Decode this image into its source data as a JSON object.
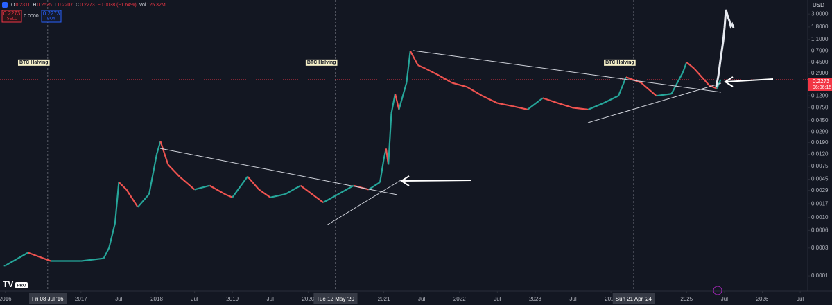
{
  "header": {
    "ohlc": [
      {
        "k": "O",
        "v": "0.2311"
      },
      {
        "k": "H",
        "v": "0.2525"
      },
      {
        "k": "L",
        "v": "0.2207"
      },
      {
        "k": "C",
        "v": "0.2273"
      },
      {
        "k": "",
        "v": "−0.0038 (−1.64%)"
      },
      {
        "k": "Vol",
        "v": "125.32M"
      }
    ],
    "sell": {
      "price": "0.2273",
      "label": "SELL"
    },
    "spread": "0.0000",
    "buy": {
      "price": "0.2273",
      "label": "BUY"
    },
    "currency": "USD",
    "last_price": "0.2273",
    "countdown": "06:06:15",
    "logo": "PRO"
  },
  "chart_data": {
    "type": "line",
    "log_scale": true,
    "grid": false,
    "up_color": "#26a69a",
    "down_color": "#ef5350",
    "xlim": [
      2015.93,
      2026.6
    ],
    "ylim": [
      5.5e-05,
      5.2
    ],
    "xticks": [
      {
        "value": 2016,
        "label": "2016"
      },
      {
        "value": 2017,
        "label": "2017"
      },
      {
        "value": 2017.5,
        "label": "Jul"
      },
      {
        "value": 2018,
        "label": "2018"
      },
      {
        "value": 2018.5,
        "label": "Jul"
      },
      {
        "value": 2019,
        "label": "2019"
      },
      {
        "value": 2019.5,
        "label": "Jul"
      },
      {
        "value": 2020,
        "label": "2020"
      },
      {
        "value": 2021,
        "label": "2021"
      },
      {
        "value": 2021.5,
        "label": "Jul"
      },
      {
        "value": 2022,
        "label": "2022"
      },
      {
        "value": 2022.5,
        "label": "Jul"
      },
      {
        "value": 2023,
        "label": "2023"
      },
      {
        "value": 2023.5,
        "label": "Jul"
      },
      {
        "value": 2024,
        "label": "2024"
      },
      {
        "value": 2025,
        "label": "2025"
      },
      {
        "value": 2025.5,
        "label": "Jul"
      },
      {
        "value": 2026,
        "label": "2026"
      },
      {
        "value": 2026.5,
        "label": "Jul"
      }
    ],
    "yticks": [
      {
        "value": 3,
        "label": "3.0000"
      },
      {
        "value": 1.8,
        "label": "1.8000"
      },
      {
        "value": 1.1,
        "label": "1.1000"
      },
      {
        "value": 0.7,
        "label": "0.7000"
      },
      {
        "value": 0.45,
        "label": "0.4500"
      },
      {
        "value": 0.29,
        "label": "0.2900"
      },
      {
        "value": 0.12,
        "label": "0.1200"
      },
      {
        "value": 0.075,
        "label": "0.0750"
      },
      {
        "value": 0.045,
        "label": "0.0450"
      },
      {
        "value": 0.029,
        "label": "0.0290"
      },
      {
        "value": 0.019,
        "label": "0.0190"
      },
      {
        "value": 0.012,
        "label": "0.0120"
      },
      {
        "value": 0.0075,
        "label": "0.0075"
      },
      {
        "value": 0.0045,
        "label": "0.0045"
      },
      {
        "value": 0.0029,
        "label": "0.0029"
      },
      {
        "value": 0.0017,
        "label": "0.0017"
      },
      {
        "value": 0.001,
        "label": "0.0010"
      },
      {
        "value": 0.0006,
        "label": "0.0006"
      },
      {
        "value": 0.0003,
        "label": "0.0003"
      },
      {
        "value": 0.0001,
        "label": "0.0001"
      }
    ],
    "markers": [
      {
        "value": 2016.56,
        "label": "Fri 08 Jul '16",
        "note": "BTC Halving"
      },
      {
        "value": 2020.36,
        "label": "Tue 12 May '20",
        "note": "BTC Halving"
      },
      {
        "value": 2024.3,
        "label": "Sun 21 Apr '24",
        "note": "BTC Halving"
      }
    ],
    "current_price": 0.2273,
    "x": [
      2016.0,
      2016.3,
      2016.6,
      2017.0,
      2017.3,
      2017.37,
      2017.45,
      2017.5,
      2017.6,
      2017.75,
      2017.9,
      2018.0,
      2018.05,
      2018.15,
      2018.3,
      2018.5,
      2018.7,
      2018.9,
      2019.0,
      2019.2,
      2019.35,
      2019.5,
      2019.7,
      2019.9,
      2020.0,
      2020.2,
      2020.4,
      2020.6,
      2020.8,
      2020.95,
      2021.0,
      2021.03,
      2021.06,
      2021.1,
      2021.15,
      2021.2,
      2021.3,
      2021.35,
      2021.45,
      2021.55,
      2021.7,
      2021.9,
      2022.1,
      2022.3,
      2022.5,
      2022.7,
      2022.9,
      2023.1,
      2023.3,
      2023.5,
      2023.7,
      2023.9,
      2024.1,
      2024.2,
      2024.4,
      2024.6,
      2024.8,
      2024.95,
      2025.0,
      2025.1,
      2025.3,
      2025.4,
      2025.45
    ],
    "values": [
      0.00015,
      0.00025,
      0.00018,
      0.00018,
      0.0002,
      0.0003,
      0.0008,
      0.004,
      0.003,
      0.0015,
      0.0025,
      0.012,
      0.02,
      0.008,
      0.005,
      0.003,
      0.0035,
      0.0025,
      0.0022,
      0.005,
      0.003,
      0.0022,
      0.0025,
      0.0035,
      0.0028,
      0.0018,
      0.0025,
      0.0035,
      0.003,
      0.004,
      0.01,
      0.015,
      0.008,
      0.06,
      0.13,
      0.07,
      0.2,
      0.7,
      0.4,
      0.35,
      0.28,
      0.2,
      0.17,
      0.12,
      0.09,
      0.08,
      0.07,
      0.11,
      0.09,
      0.075,
      0.07,
      0.09,
      0.12,
      0.25,
      0.2,
      0.12,
      0.13,
      0.3,
      0.45,
      0.35,
      0.18,
      0.16,
      0.2273
    ]
  }
}
